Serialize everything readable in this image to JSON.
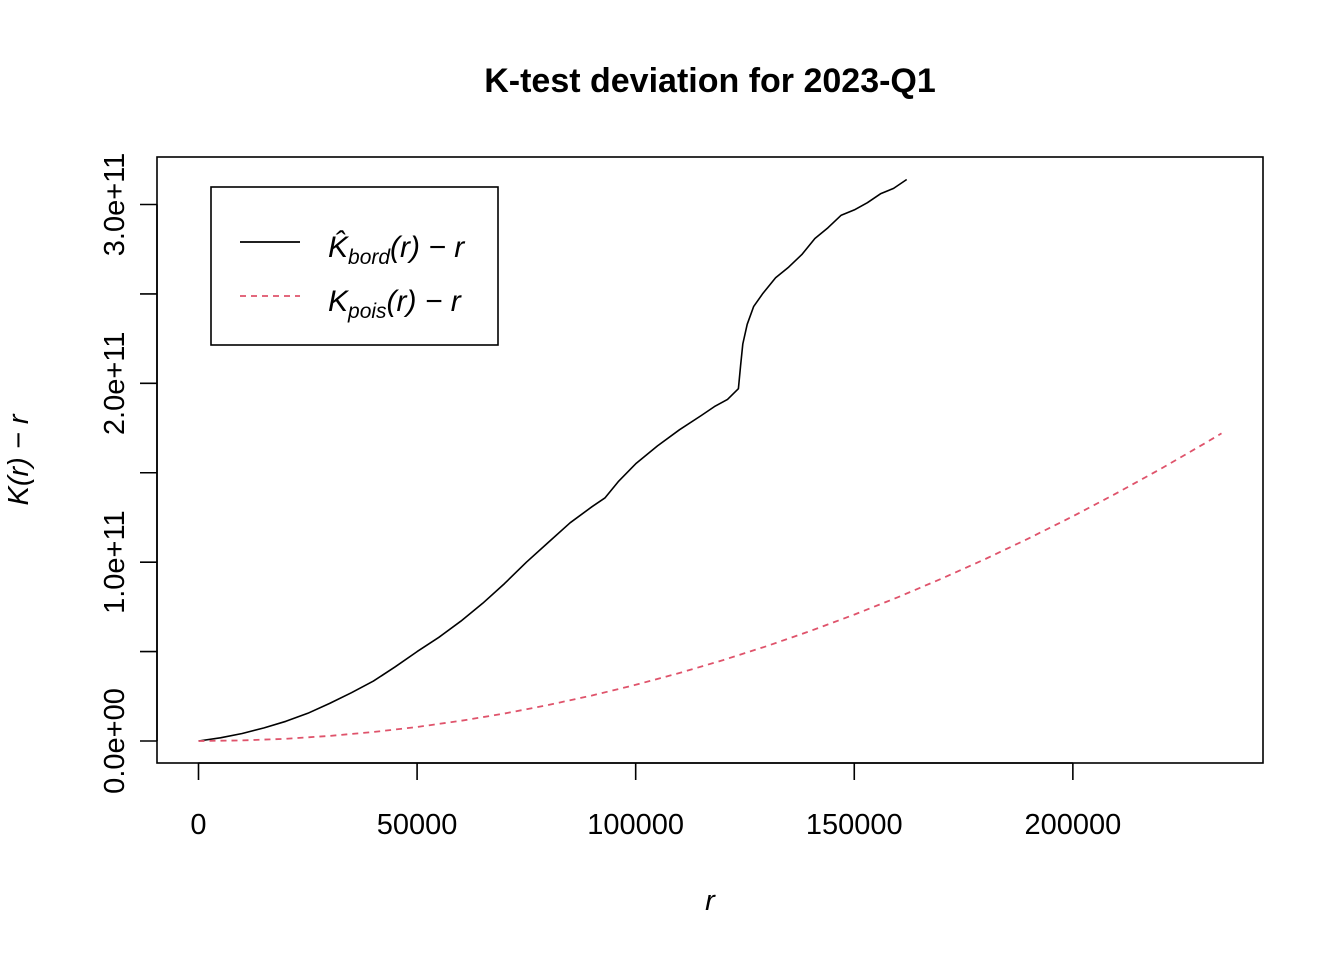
{
  "chart_data": {
    "type": "line",
    "title": "K-test deviation for 2023-Q1",
    "xlabel": "r",
    "ylabel": "K(r) − r",
    "xlim": [
      0,
      235000
    ],
    "ylim": [
      0,
      320000000000
    ],
    "x_ticks": [
      {
        "value": 0,
        "label": "0"
      },
      {
        "value": 50000,
        "label": "50000"
      },
      {
        "value": 100000,
        "label": "100000"
      },
      {
        "value": 150000,
        "label": "150000"
      },
      {
        "value": 200000,
        "label": "200000"
      }
    ],
    "y_ticks": [
      {
        "value": 0,
        "label": "0.0e+00"
      },
      {
        "value": 50000000000,
        "label": ""
      },
      {
        "value": 100000000000,
        "label": "1.0e+11"
      },
      {
        "value": 150000000000,
        "label": ""
      },
      {
        "value": 200000000000,
        "label": "2.0e+11"
      },
      {
        "value": 250000000000,
        "label": ""
      },
      {
        "value": 300000000000,
        "label": "3.0e+11"
      }
    ],
    "grid": false,
    "legend_position": "top-left",
    "series": [
      {
        "label_main": "K̂",
        "label_sub": "bord",
        "label_tail": "(r) − r",
        "color": "#000000",
        "dash": "solid",
        "x": [
          0,
          5000,
          10000,
          15000,
          20000,
          25000,
          30000,
          35000,
          40000,
          45000,
          50000,
          55000,
          60000,
          65000,
          70000,
          75000,
          80000,
          85000,
          90000,
          93000,
          96000,
          100000,
          105000,
          110000,
          115000,
          118000,
          121000,
          123500,
          124000,
          124500,
          125500,
          127000,
          129000,
          132000,
          135000,
          138000,
          141000,
          144000,
          147000,
          150000,
          153000,
          156000,
          159000,
          162000
        ],
        "y": [
          0,
          1800000000,
          4200000000,
          7300000000,
          11000000000,
          15500000000,
          21000000000,
          27000000000,
          33500000000,
          41500000000,
          50000000000,
          58000000000,
          67000000000,
          77000000000,
          88000000000,
          100000000000,
          111000000000,
          122000000000,
          131000000000,
          136000000000,
          145000000000,
          155000000000,
          165000000000,
          174000000000,
          182000000000,
          187000000000,
          191000000000,
          197000000000,
          210000000000,
          222000000000,
          233000000000,
          243000000000,
          250000000000,
          259000000000,
          265000000000,
          272000000000,
          281000000000,
          287000000000,
          294000000000,
          297000000000,
          301000000000,
          306000000000,
          309000000000,
          314000000000
        ]
      },
      {
        "label_main": "K",
        "label_sub": "pois",
        "label_tail": "(r) − r",
        "color": "#DF536B",
        "dash": "dashed",
        "x": [
          0,
          10000,
          20000,
          30000,
          40000,
          50000,
          60000,
          70000,
          80000,
          90000,
          100000,
          110000,
          120000,
          130000,
          140000,
          150000,
          160000,
          170000,
          180000,
          190000,
          200000,
          210000,
          220000,
          230000,
          234000
        ],
        "y": [
          0,
          314000000,
          1256000000,
          2827000000,
          5026000000,
          7854000000,
          11310000000,
          15394000000,
          20106000000,
          25447000000,
          31416000000,
          38013000000,
          45239000000,
          53093000000,
          61575000000,
          70686000000,
          80425000000,
          90792000000,
          101788000000,
          113411000000,
          125664000000,
          138544000000,
          152053000000,
          166190000000,
          172007000000
        ]
      }
    ]
  }
}
